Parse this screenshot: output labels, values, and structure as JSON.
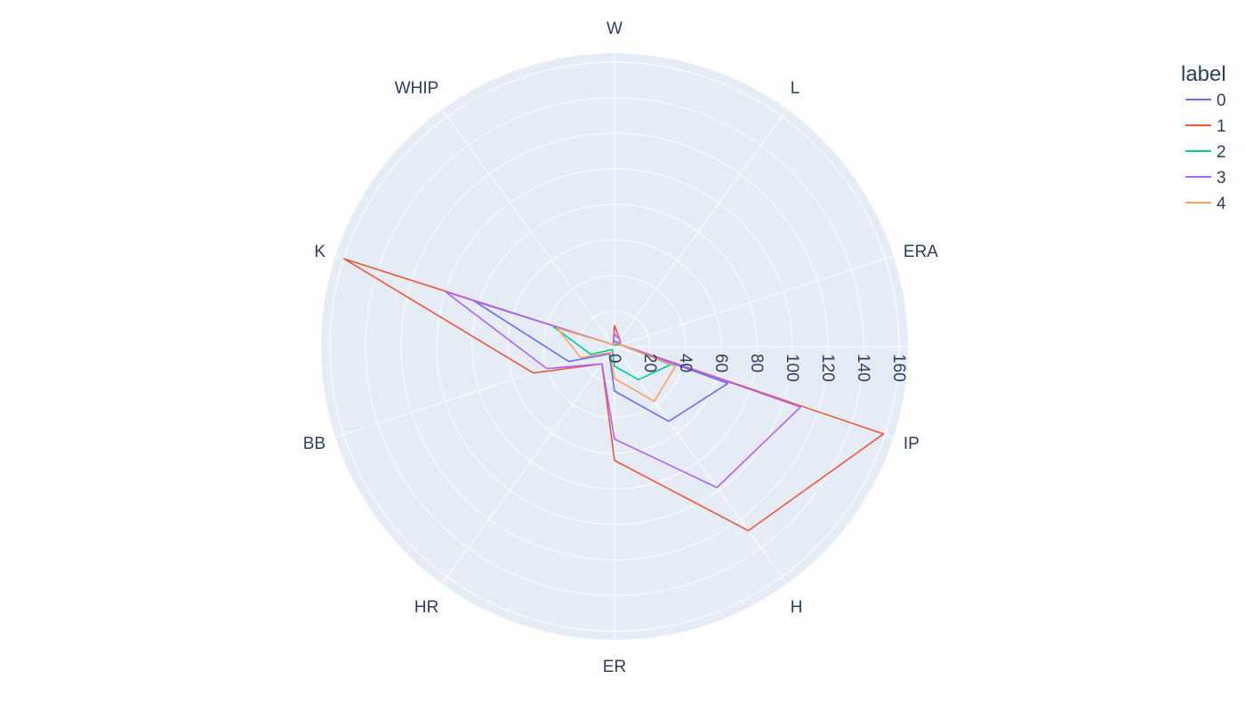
{
  "chart_data": {
    "type": "radar",
    "axes": [
      "W",
      "L",
      "ERA",
      "IP",
      "H",
      "ER",
      "HR",
      "BB",
      "K",
      "WHIP"
    ],
    "radial_range": [
      0,
      165
    ],
    "radial_ticks": [
      "0",
      "20",
      "40",
      "60",
      "80",
      "100",
      "120",
      "140",
      "160"
    ],
    "legend_title": "label",
    "legend_position": "top-right",
    "grid": true,
    "background_color": "#e5ecf6",
    "series": [
      {
        "name": "0",
        "color": "#636efa",
        "values": [
          3,
          3,
          3.5,
          67,
          52,
          25,
          5,
          27,
          83,
          1.3
        ]
      },
      {
        "name": "1",
        "color": "#ef553b",
        "values": [
          12,
          5,
          3.5,
          159,
          128,
          64,
          12,
          48,
          160,
          1.2
        ]
      },
      {
        "name": "2",
        "color": "#00cc96",
        "values": [
          1,
          1,
          3.5,
          33,
          23,
          11,
          2,
          14,
          36,
          1.3
        ]
      },
      {
        "name": "3",
        "color": "#ab63fa",
        "values": [
          7,
          5,
          3.5,
          110,
          98,
          52,
          12,
          40,
          100,
          1.3
        ]
      },
      {
        "name": "4",
        "color": "#ffa15a",
        "values": [
          2,
          2,
          3.5,
          36,
          38,
          18,
          4,
          20,
          34,
          1.3
        ]
      }
    ]
  }
}
